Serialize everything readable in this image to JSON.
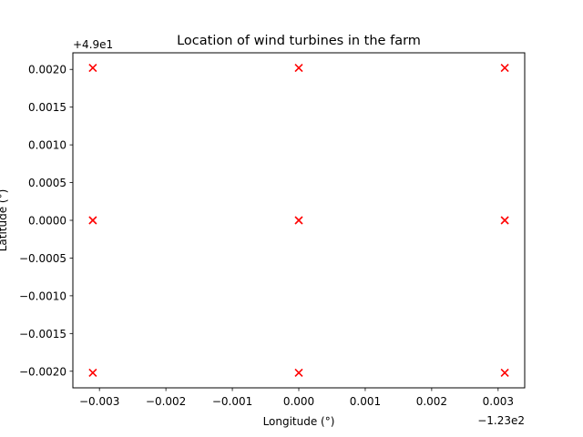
{
  "chart_data": {
    "type": "scatter",
    "title": "Location of wind turbines in the farm",
    "xlabel": "Longitude (°)",
    "ylabel": "Latitude (°)",
    "x_offset_label": "−1.23e2",
    "y_offset_label": "+4.9e1",
    "x_offset": -123,
    "y_offset": 49,
    "xlim": [
      -0.0034,
      0.0034
    ],
    "ylim": [
      -0.00222,
      0.00222
    ],
    "xticks": [
      -0.003,
      -0.002,
      -0.001,
      0.0,
      0.001,
      0.002,
      0.003
    ],
    "xtick_labels": [
      "−0.003",
      "−0.002",
      "−0.001",
      "0.000",
      "0.001",
      "0.002",
      "0.003"
    ],
    "yticks": [
      0.002,
      0.0015,
      0.001,
      0.0005,
      0.0,
      -0.0005,
      -0.001,
      -0.0015,
      -0.002
    ],
    "ytick_labels": [
      "0.0020",
      "0.0015",
      "0.0010",
      "0.0005",
      "0.0000",
      "−0.0005",
      "−0.0010",
      "−0.0015",
      "−0.0020"
    ],
    "grid": false,
    "marker": "x",
    "marker_color": "#ff0000",
    "points": [
      {
        "x": -0.0031,
        "y": 0.00202
      },
      {
        "x": 0.0,
        "y": 0.00202
      },
      {
        "x": 0.0031,
        "y": 0.00202
      },
      {
        "x": -0.0031,
        "y": 0.0
      },
      {
        "x": 0.0,
        "y": 0.0
      },
      {
        "x": 0.0031,
        "y": 0.0
      },
      {
        "x": -0.0031,
        "y": -0.00202
      },
      {
        "x": 0.0,
        "y": -0.00202
      },
      {
        "x": 0.0031,
        "y": -0.00202
      }
    ]
  }
}
